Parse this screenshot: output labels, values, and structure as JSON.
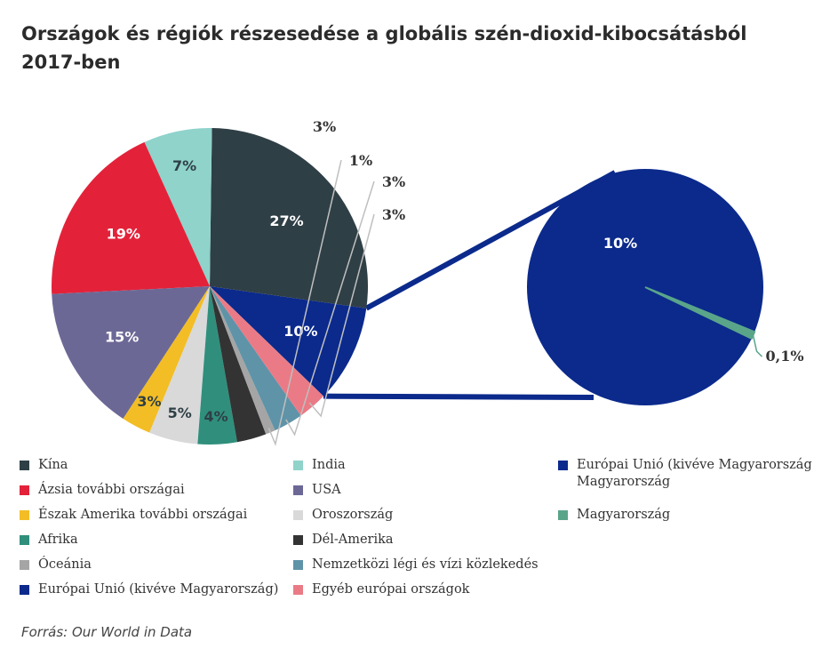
{
  "header": {
    "title_line1": "Országok és régiók részesedése a globális szén-dioxid-kibocsátásból",
    "title_line2": "2017-ben"
  },
  "source": "Forrás: Our World in Data",
  "chart_data": {
    "type": "pie",
    "title": "Országok és régiók részesedése a globális szén-dioxid-kibocsátásból 2017-ben",
    "slices": [
      {
        "name": "Európai Unió (kivéve Magyarország)",
        "value": 10,
        "label": "10%",
        "color": "#0b2a8c",
        "label_color": "#ffffff"
      },
      {
        "name": "Kína",
        "value": 27,
        "label": "27%",
        "color": "#2f3f46",
        "label_color": "#ffffff"
      },
      {
        "name": "India",
        "value": 7,
        "label": "7%",
        "color": "#8fd3cb",
        "label_color": "#2f3f46"
      },
      {
        "name": "Ázsia további országai",
        "value": 19,
        "label": "19%",
        "color": "#e3223a",
        "label_color": "#ffffff"
      },
      {
        "name": "USA",
        "value": 15,
        "label": "15%",
        "color": "#6c6896",
        "label_color": "#ffffff"
      },
      {
        "name": "Észak Amerika további országai",
        "value": 3,
        "label": "3%",
        "color": "#f3bd25",
        "label_color": "#2f3f46"
      },
      {
        "name": "Oroszország",
        "value": 5,
        "label": "5%",
        "color": "#d9d9d9",
        "label_color": "#2f3f46"
      },
      {
        "name": "Afrika",
        "value": 4,
        "label": "4%",
        "color": "#2f8f7c",
        "label_color": "#2f3f46"
      },
      {
        "name": "Dél-Amerika",
        "value": 3,
        "label": "3%",
        "color": "#333333",
        "label_color": "#333333"
      },
      {
        "name": "Óceánia",
        "value": 1,
        "label": "1%",
        "color": "#a5a5a5",
        "label_color": "#333333"
      },
      {
        "name": "Nemzetközi légi és vízi közlekedés",
        "value": 3,
        "label": "3%",
        "color": "#5f93a8",
        "label_color": "#333333"
      },
      {
        "name": "Egyéb európai országok",
        "value": 3,
        "label": "3%",
        "color": "#ea7b86",
        "label_color": "#333333"
      }
    ],
    "zoom": {
      "of": "Európai Unió (kivéve Magyarország)",
      "slices": [
        {
          "name": "Európai Unió (kivéve Magyarország)",
          "value": 10,
          "label": "10%",
          "color": "#0b2a8c",
          "label_color": "#ffffff"
        },
        {
          "name": "Magyarország",
          "value": 0.1,
          "label": "0,1%",
          "color": "#5aa58a",
          "label_color": "#333333"
        }
      ]
    }
  },
  "legend": {
    "columns": [
      [
        {
          "label": "Kína",
          "color": "#2f3f46"
        },
        {
          "label": "Ázsia további országai",
          "color": "#e3223a"
        },
        {
          "label": "Észak Amerika további országai",
          "color": "#f3bd25"
        },
        {
          "label": "Afrika",
          "color": "#2f8f7c"
        },
        {
          "label": "Óceánia",
          "color": "#a5a5a5"
        },
        {
          "label": "Európai Unió (kivéve Magyarország)",
          "color": "#0b2a8c"
        }
      ],
      [
        {
          "label": "India",
          "color": "#8fd3cb"
        },
        {
          "label": "USA",
          "color": "#6c6896"
        },
        {
          "label": "Oroszország",
          "color": "#d9d9d9"
        },
        {
          "label": "Dél-Amerika",
          "color": "#333333"
        },
        {
          "label": "Nemzetközi légi és vízi közlekedés",
          "color": "#5f93a8"
        },
        {
          "label": "Egyéb európai országok",
          "color": "#ea7b86"
        }
      ],
      [
        {
          "label": "Európai Unió (kivéve Magyarország",
          "label2": "Magyarország",
          "color": "#0b2a8c"
        },
        {
          "label": "Magyarország",
          "color": "#5aa58a"
        }
      ]
    ]
  }
}
